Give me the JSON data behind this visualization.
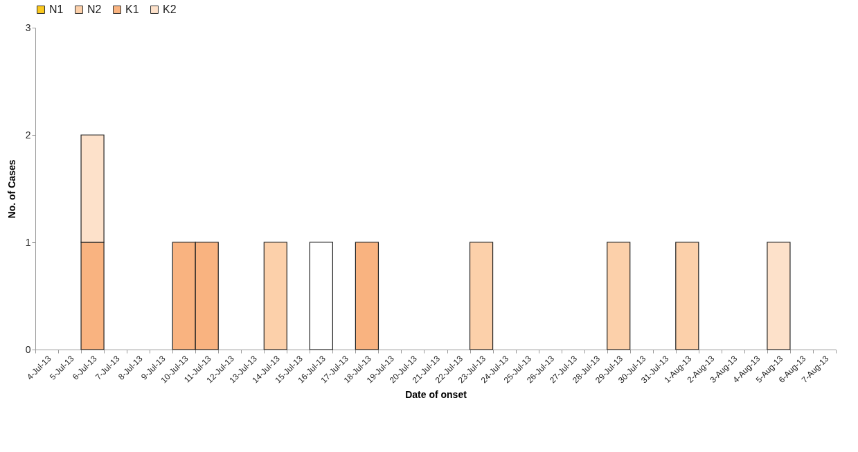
{
  "chart_data": {
    "type": "bar",
    "stacked": true,
    "xlabel": "Date of onset",
    "ylabel": "No. of Cases",
    "legend": "top",
    "grid": false,
    "categories": [
      "4-Jul-13",
      "5-Jul-13",
      "6-Jul-13",
      "7-Jul-13",
      "8-Jul-13",
      "9-Jul-13",
      "10-Jul-13",
      "11-Jul-13",
      "12-Jul-13",
      "13-Jul-13",
      "14-Jul-13",
      "15-Jul-13",
      "16-Jul-13",
      "17-Jul-13",
      "18-Jul-13",
      "19-Jul-13",
      "20-Jul-13",
      "21-Jul-13",
      "22-Jul-13",
      "23-Jul-13",
      "24-Jul-13",
      "25-Jul-13",
      "26-Jul-13",
      "27-Jul-13",
      "28-Jul-13",
      "29-Jul-13",
      "30-Jul-13",
      "31-Jul-13",
      "1-Aug-13",
      "2-Aug-13",
      "3-Aug-13",
      "4-Aug-13",
      "5-Aug-13",
      "6-Aug-13",
      "7-Aug-13"
    ],
    "ylim": [
      0,
      3
    ],
    "yticks": [
      0,
      1,
      2,
      3
    ],
    "series": [
      {
        "name": "N1",
        "color": "#fac81e",
        "values": [
          null,
          null,
          null,
          null,
          null,
          null,
          null,
          null,
          null,
          null,
          null,
          null,
          null,
          null,
          null,
          null,
          null,
          null,
          null,
          null,
          null,
          null,
          null,
          null,
          null,
          null,
          null,
          null,
          null,
          null,
          null,
          null,
          null,
          null,
          null
        ]
      },
      {
        "name": "N2",
        "color": "#fcd0aa",
        "values": [
          null,
          null,
          null,
          null,
          null,
          null,
          null,
          null,
          null,
          null,
          1,
          null,
          null,
          null,
          null,
          null,
          null,
          null,
          null,
          1,
          null,
          null,
          null,
          null,
          null,
          1,
          null,
          null,
          1,
          null,
          null,
          null,
          null,
          null,
          null
        ]
      },
      {
        "name": "K1",
        "color": "#f9b380",
        "values": [
          null,
          null,
          1,
          null,
          null,
          null,
          1,
          1,
          null,
          null,
          null,
          null,
          null,
          null,
          1,
          null,
          null,
          null,
          null,
          null,
          null,
          null,
          null,
          null,
          null,
          null,
          null,
          null,
          null,
          null,
          null,
          null,
          null,
          null,
          null
        ]
      },
      {
        "name": "K2",
        "color": "#fde1ca",
        "values": [
          null,
          null,
          1,
          null,
          null,
          null,
          null,
          null,
          null,
          null,
          null,
          null,
          null,
          null,
          null,
          null,
          null,
          null,
          null,
          null,
          null,
          null,
          null,
          null,
          null,
          null,
          null,
          null,
          null,
          null,
          null,
          null,
          1,
          null,
          null
        ]
      },
      {
        "color": "#ffffff",
        "values": [
          null,
          null,
          null,
          null,
          null,
          null,
          null,
          null,
          null,
          null,
          null,
          null,
          1,
          null,
          null,
          null,
          null,
          null,
          null,
          null,
          null,
          null,
          null,
          null,
          null,
          null,
          null,
          null,
          null,
          null,
          null,
          null,
          null,
          null,
          null
        ]
      }
    ]
  }
}
